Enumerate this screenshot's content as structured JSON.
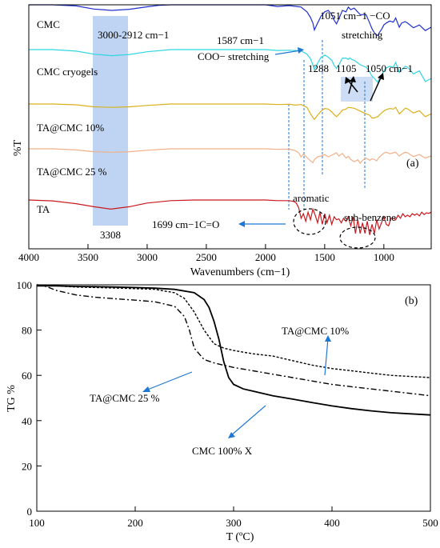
{
  "chart_data": [
    {
      "panel": "(a)",
      "type": "line",
      "xlabel": "Wavenumbers (cm−1)",
      "ylabel": "%T",
      "xlim": [
        4000,
        600
      ],
      "x_ticks": [
        4000,
        3500,
        3000,
        2500,
        2000,
        1500,
        1000
      ],
      "series": [
        {
          "name": "CMC",
          "color": "#1f2fcf",
          "label_color": "#000000",
          "x": [
            4000,
            3800,
            3600,
            3450,
            3300,
            3150,
            3000,
            2900,
            2800,
            2600,
            2400,
            2200,
            2000,
            1900,
            1800,
            1700,
            1650,
            1620,
            1600,
            1587,
            1560,
            1530,
            1500,
            1470,
            1440,
            1420,
            1400,
            1380,
            1350,
            1320,
            1300,
            1280,
            1250,
            1200,
            1150,
            1120,
            1100,
            1080,
            1060,
            1051,
            1040,
            1020,
            1000,
            980,
            950,
            920,
            900,
            870,
            850,
            820,
            800,
            750,
            700,
            650,
            600
          ],
          "y": [
            100,
            100,
            99.6,
            98.5,
            98,
            98.4,
            99.3,
            99.8,
            100,
            100,
            100,
            100,
            100,
            99.4,
            99.7,
            99.2,
            97.5,
            95.5,
            93.5,
            91,
            93.5,
            96,
            97.5,
            98,
            96.5,
            94.5,
            93.2,
            95,
            98,
            97.5,
            99.2,
            98.3,
            98.8,
            96.5,
            96.5,
            93.5,
            91.5,
            90,
            89.2,
            89,
            90,
            91.2,
            92.8,
            93.5,
            94.2,
            93.8,
            95.3,
            92,
            93.5,
            94,
            93.5,
            91.8,
            92.8,
            90.8,
            92
          ]
        },
        {
          "name": "CMC cryogels",
          "color": "#2fd6e0",
          "label_color": "#000000",
          "x": [
            4000,
            3800,
            3600,
            3450,
            3300,
            3150,
            3000,
            2800,
            2600,
            2400,
            2200,
            2000,
            1900,
            1800,
            1700,
            1650,
            1620,
            1600,
            1587,
            1560,
            1530,
            1500,
            1470,
            1440,
            1420,
            1400,
            1380,
            1350,
            1320,
            1300,
            1288,
            1270,
            1250,
            1200,
            1150,
            1120,
            1105,
            1080,
            1060,
            1050,
            1040,
            1020,
            1000,
            980,
            950,
            920,
            900,
            870,
            850,
            820,
            800,
            750,
            700,
            650,
            600
          ],
          "y": [
            100,
            100,
            99.5,
            98.5,
            98,
            98.4,
            99.3,
            100,
            100,
            100,
            100,
            100,
            99.7,
            99.8,
            99.6,
            98.5,
            97,
            95,
            93.5,
            95.5,
            97.5,
            98.2,
            97.5,
            96.5,
            94.8,
            93.8,
            95,
            97.2,
            97.2,
            96.8,
            97.3,
            96.7,
            96.5,
            95,
            94.2,
            92.8,
            91.5,
            90.5,
            89.6,
            89.2,
            90.5,
            91.5,
            93,
            94,
            94.5,
            94.2,
            95.8,
            92.5,
            93.3,
            94.5,
            94.2,
            92,
            93,
            89.5,
            90.5
          ]
        },
        {
          "name": "TA@CMC 10%",
          "color": "#d9b01c",
          "label_color": "#000000",
          "x": [
            4000,
            3800,
            3600,
            3450,
            3300,
            3150,
            3000,
            2800,
            2600,
            2400,
            2200,
            2000,
            1900,
            1800,
            1750,
            1700,
            1650,
            1620,
            1600,
            1587,
            1560,
            1530,
            1500,
            1470,
            1440,
            1420,
            1400,
            1380,
            1350,
            1320,
            1300,
            1250,
            1200,
            1150,
            1120,
            1100,
            1080,
            1060,
            1050,
            1040,
            1020,
            1000,
            980,
            950,
            920,
            900,
            870,
            850,
            820,
            800,
            750,
            700,
            650,
            600
          ],
          "y": [
            100,
            100,
            99.7,
            99,
            98.8,
            99,
            99.5,
            100,
            100,
            100,
            100,
            100,
            99.8,
            99.9,
            99.6,
            99.8,
            98.8,
            96.5,
            95.2,
            94.5,
            96,
            97.5,
            98.4,
            98.2,
            97.2,
            96.2,
            95.5,
            96.3,
            97.8,
            98.2,
            98.8,
            98.5,
            97.5,
            96.5,
            96,
            95,
            95,
            95.4,
            95.5,
            96,
            96.8,
            97.5,
            98,
            98.4,
            98.2,
            98.8,
            96.5,
            97.2,
            98.5,
            98.3,
            96.8,
            97.6,
            95.5,
            96.5
          ]
        },
        {
          "name": "TA@CMC 25 %",
          "color": "#f0b088",
          "label_color": "#000000",
          "x": [
            4000,
            3800,
            3600,
            3450,
            3300,
            3150,
            3000,
            2800,
            2600,
            2400,
            2200,
            2000,
            1900,
            1800,
            1750,
            1720,
            1700,
            1680,
            1650,
            1620,
            1600,
            1587,
            1560,
            1530,
            1500,
            1470,
            1440,
            1420,
            1400,
            1380,
            1350,
            1320,
            1300,
            1280,
            1250,
            1220,
            1200,
            1180,
            1150,
            1120,
            1100,
            1080,
            1060,
            1050,
            1040,
            1020,
            1000,
            980,
            950,
            920,
            900,
            870,
            850,
            820,
            800,
            750,
            700,
            650,
            600
          ],
          "y": [
            100,
            100,
            99.6,
            99,
            98.8,
            99,
            99.5,
            100,
            100,
            100,
            100,
            100,
            99.8,
            99.9,
            99.4,
            98.6,
            97.2,
            98.2,
            97,
            95.8,
            95.2,
            96.3,
            97.2,
            97.5,
            98,
            97.2,
            97.8,
            98.2,
            98.6,
            97.5,
            98.4,
            96.8,
            97.4,
            96.3,
            95.5,
            96.2,
            95,
            96,
            96.8,
            96,
            96.5,
            96.3,
            95.8,
            96.5,
            97,
            97.8,
            98.5,
            98.8,
            98.3,
            98.6,
            98.8,
            97.5,
            98.1,
            98.8,
            98.6,
            97.3,
            98,
            96.8,
            97.5
          ]
        },
        {
          "name": "TA",
          "color": "#c8191e",
          "label_color": "#000000",
          "x": [
            4000,
            3800,
            3600,
            3450,
            3308,
            3150,
            3000,
            2800,
            2600,
            2400,
            2200,
            2000,
            1900,
            1800,
            1760,
            1740,
            1720,
            1699,
            1680,
            1660,
            1640,
            1620,
            1600,
            1580,
            1560,
            1540,
            1520,
            1500,
            1480,
            1460,
            1440,
            1420,
            1400,
            1380,
            1360,
            1340,
            1320,
            1300,
            1280,
            1260,
            1240,
            1220,
            1200,
            1180,
            1160,
            1140,
            1120,
            1100,
            1080,
            1060,
            1040,
            1020,
            1000,
            980,
            960,
            940,
            920,
            900,
            880,
            860,
            840,
            820,
            800,
            780,
            760,
            740,
            720,
            700,
            680,
            660,
            640,
            620,
            600
          ],
          "y": [
            100,
            99.7,
            98.8,
            97.8,
            97,
            97.8,
            99,
            99.8,
            100,
            100,
            100,
            100,
            99.8,
            99.8,
            99.5,
            99,
            97.5,
            94,
            95.5,
            93,
            96,
            93.5,
            97,
            95,
            92.5,
            96,
            92,
            95.5,
            92.5,
            95,
            92,
            94.5,
            93.5,
            93.8,
            92.5,
            94,
            93,
            94.5,
            91.5,
            94.5,
            89,
            93.5,
            89,
            92.5,
            89,
            93,
            88.5,
            92,
            89,
            93.5,
            90.5,
            92.5,
            94.5,
            92,
            91.5,
            94,
            94,
            93.5,
            95,
            94,
            95.5,
            94.5,
            95,
            94.5,
            95.5,
            95,
            95.5,
            94.8,
            96,
            95.2,
            95.8,
            95.6,
            96
          ]
        }
      ],
      "annotations": [
        {
          "text": "3000-2912 cm−1"
        },
        {
          "text": "1051 cm−1 −CO"
        },
        {
          "text": "stretching"
        },
        {
          "text": "1587 cm−1"
        },
        {
          "text": "COO− stretching"
        },
        {
          "text": "1288"
        },
        {
          "text": "1105"
        },
        {
          "text": "1050 cm−1"
        },
        {
          "text": "aromatic"
        },
        {
          "text": "sub-benzene"
        },
        {
          "text": "1699 cm−1C=O"
        },
        {
          "text": "3308"
        }
      ]
    },
    {
      "panel": "(b)",
      "type": "line",
      "xlabel": "T (ºC)",
      "ylabel": "TG %",
      "xlim": [
        100,
        500
      ],
      "ylim": [
        0,
        100
      ],
      "x_ticks": [
        100,
        200,
        300,
        400,
        500
      ],
      "y_ticks": [
        0,
        20,
        40,
        60,
        80,
        100
      ],
      "series": [
        {
          "name": "TA@CMC 10%",
          "style": "dashed",
          "x": [
            100,
            120,
            140,
            160,
            180,
            200,
            220,
            240,
            250,
            260,
            270,
            280,
            290,
            300,
            320,
            340,
            360,
            380,
            400,
            420,
            440,
            460,
            480,
            500
          ],
          "y": [
            100,
            99.5,
            99,
            98.8,
            98.6,
            98.3,
            98,
            96.5,
            94,
            88,
            80,
            74,
            72,
            71,
            69.5,
            68.5,
            66.5,
            64.5,
            63,
            62,
            61,
            60,
            59.5,
            59
          ]
        },
        {
          "name": "TA@CMC 25 %",
          "style": "dash-dot",
          "x": [
            100,
            110,
            120,
            140,
            160,
            180,
            200,
            220,
            240,
            250,
            255,
            260,
            270,
            280,
            290,
            300,
            320,
            340,
            360,
            380,
            400,
            420,
            440,
            460,
            480,
            500
          ],
          "y": [
            100,
            99.2,
            97.5,
            95.5,
            94.5,
            93.8,
            93.2,
            92.5,
            90.5,
            86,
            80,
            72,
            67,
            65.5,
            64.5,
            63.5,
            62,
            60.5,
            59,
            57.5,
            56,
            55,
            54,
            53,
            52,
            51
          ]
        },
        {
          "name": "CMC 100% X",
          "style": "solid",
          "x": [
            100,
            120,
            140,
            160,
            180,
            200,
            220,
            240,
            260,
            270,
            275,
            280,
            285,
            290,
            295,
            300,
            310,
            320,
            340,
            360,
            380,
            400,
            420,
            440,
            460,
            480,
            500
          ],
          "y": [
            99.5,
            99.5,
            99.3,
            99.2,
            99,
            98.8,
            98.5,
            98,
            96.5,
            93.5,
            90,
            84,
            76,
            66,
            59,
            56,
            54,
            53,
            51,
            49.5,
            48,
            46.5,
            45.3,
            44.3,
            43.5,
            43,
            42.5
          ]
        }
      ],
      "labels": {
        "tacmc10": "TA@CMC 10%",
        "tacmc25": "TA@CMC 25 %",
        "cmc100": "CMC 100% X"
      }
    }
  ],
  "colors": {
    "axis": "#000000",
    "accent_blue": "#1f77d4",
    "highlight": "#aac6ee"
  }
}
